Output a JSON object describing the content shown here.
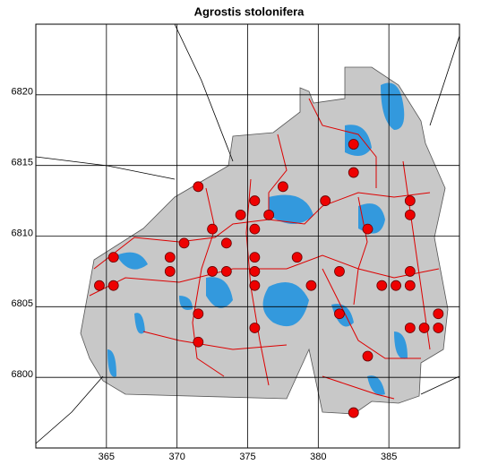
{
  "chart_data": {
    "type": "scatter",
    "title": "Agrostis stolonifera",
    "x": [
      382.5,
      382.5,
      371.5,
      375.5,
      377.5,
      380.5,
      386.5,
      374.5,
      376.5,
      386.5,
      372.5,
      375.5,
      383.5,
      370.5,
      373.5,
      365.5,
      369.5,
      375.5,
      378.5,
      369.5,
      372.5,
      373.5,
      375.5,
      381.5,
      386.5,
      364.5,
      365.5,
      375.5,
      379.5,
      384.5,
      385.5,
      386.5,
      371.5,
      381.5,
      388.5,
      375.5,
      386.5,
      387.5,
      388.5,
      371.5,
      383.5,
      382.5
    ],
    "values": [
      6816.5,
      6814.5,
      6813.5,
      6812.5,
      6813.5,
      6812.5,
      6812.5,
      6811.5,
      6811.5,
      6811.5,
      6810.5,
      6810.5,
      6810.5,
      6809.5,
      6809.5,
      6808.5,
      6808.5,
      6808.5,
      6808.5,
      6807.5,
      6807.5,
      6807.5,
      6807.5,
      6807.5,
      6807.5,
      6806.5,
      6806.5,
      6806.5,
      6806.5,
      6806.5,
      6806.5,
      6806.5,
      6804.5,
      6804.5,
      6804.5,
      6803.5,
      6803.5,
      6803.5,
      6803.5,
      6802.5,
      6801.5,
      6797.5
    ],
    "color": "#ee0000",
    "xlim": [
      360,
      390
    ],
    "ylim": [
      6795,
      6825
    ],
    "xticks": [
      365,
      370,
      375,
      380,
      385
    ],
    "yticks": [
      6800,
      6805,
      6810,
      6815,
      6820
    ],
    "grid": true
  }
}
